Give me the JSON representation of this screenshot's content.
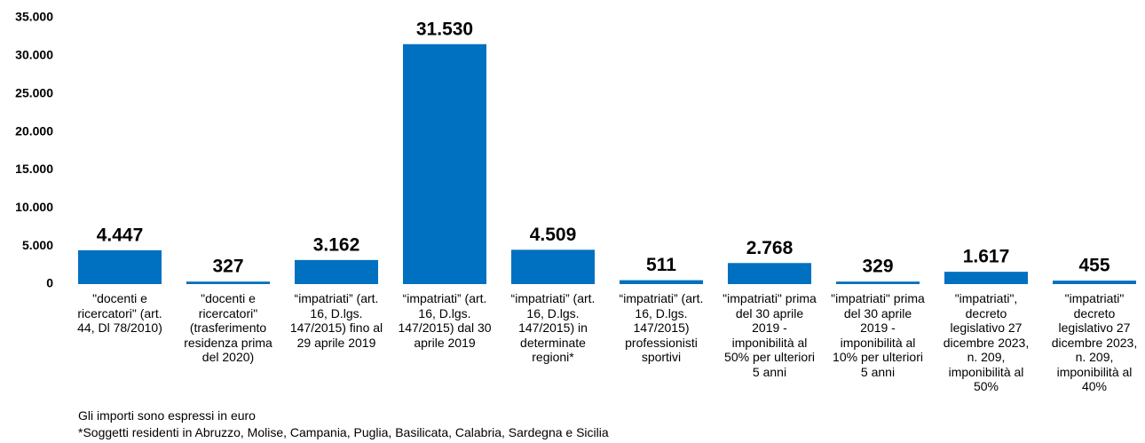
{
  "chart_data": {
    "type": "bar",
    "categories": [
      "\"docenti e\nricercatori\" (art.\n44, Dl 78/2010)",
      "\"docenti e\nricercatori\"\n(trasferimento\nresidenza prima\ndel 2020)",
      "“impatriati” (art.\n16, D.lgs.\n147/2015) fino al\n29 aprile 2019",
      "“impatriati” (art.\n16, D.lgs.\n147/2015) dal 30\naprile 2019",
      "“impatriati” (art.\n16, D.lgs.\n147/2015) in\ndeterminate\nregioni*",
      "“impatriati” (art.\n16, D.lgs.\n147/2015)\nprofessionisti\nsportivi",
      "\"impatriati\" prima\ndel 30 aprile\n2019 -\nimponibilità al\n50% per ulteriori\n5 anni",
      "\"impatriati\" prima\ndel 30 aprile\n2019 -\nimponibilità al\n10% per ulteriori\n5 anni",
      "\"impatriati\",\ndecreto\nlegislativo 27\ndicembre 2023,\nn. 209,\nimponibilità al\n50%",
      "\"impatriati\"\ndecreto\nlegislativo 27\ndicembre 2023,\nn. 209,\nimponibilità al\n40%"
    ],
    "values": [
      4447,
      327,
      3162,
      31530,
      4509,
      511,
      2768,
      329,
      1617,
      455
    ],
    "value_labels": [
      "4.447",
      "327",
      "3.162",
      "31.530",
      "4.509",
      "511",
      "2.768",
      "329",
      "1.617",
      "455"
    ],
    "color": "#0070c0",
    "ylim": [
      0,
      35000
    ],
    "yticks": [
      0,
      {
        "value": 5000,
        "label": "5.000"
      },
      {
        "value": 10000,
        "label": "10.000"
      },
      {
        "value": 15000,
        "label": "15.000"
      },
      {
        "value": 20000,
        "label": "20.000"
      },
      {
        "value": 25000,
        "label": "25.000"
      },
      {
        "value": 30000,
        "label": "30.000"
      },
      {
        "value": 35000,
        "label": "35.000"
      }
    ],
    "grid": false,
    "notes": [
      "Gli importi sono espressi in euro",
      "*Soggetti residenti in Abruzzo, Molise, Campania, Puglia, Basilicata, Calabria, Sardegna e Sicilia"
    ]
  }
}
